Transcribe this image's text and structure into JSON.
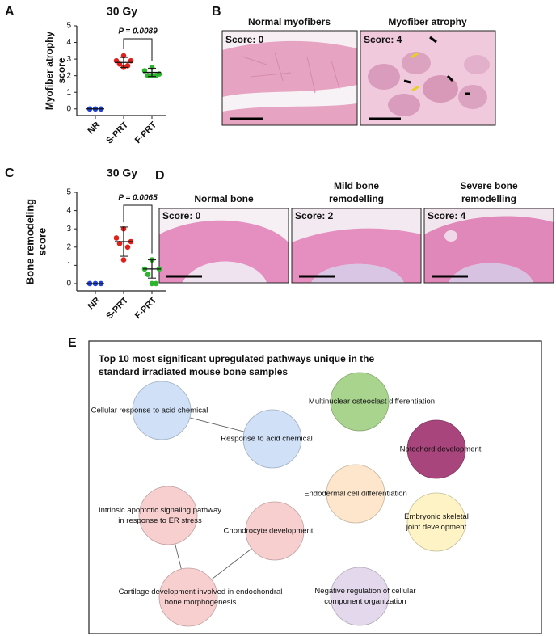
{
  "chart_data": [
    {
      "type": "strip",
      "panel": "A",
      "title": "30 Gy",
      "ylabel_lines": [
        "Myofiber atrophy",
        "score"
      ],
      "categories": [
        "NR",
        "S-PRT",
        "F-PRT"
      ],
      "values": [
        [
          0,
          0,
          0
        ],
        [
          3.2,
          2.9,
          2.9,
          2.7,
          2.6,
          2.5
        ],
        [
          2.5,
          2.3,
          2.1,
          2.0,
          2.0,
          2.0
        ]
      ],
      "means": [
        0,
        2.8,
        2.2
      ],
      "errors": [
        0,
        0.3,
        0.25
      ],
      "colors": [
        "#1f3fd6",
        "#e0201b",
        "#2db52d"
      ],
      "annotation": "P = 0.0089",
      "ylim": [
        -0.4,
        5
      ],
      "yticks": [
        0,
        1,
        2,
        3,
        4,
        5
      ]
    },
    {
      "type": "strip",
      "panel": "C",
      "title": "30 Gy",
      "ylabel_lines": [
        "Bone remodeling",
        "score"
      ],
      "categories": [
        "NR",
        "S-PRT",
        "F-PRT"
      ],
      "values": [
        [
          0,
          0,
          0
        ],
        [
          3.0,
          2.5,
          2.3,
          2.2,
          2.0,
          1.3
        ],
        [
          1.3,
          0.8,
          0.8,
          0.5,
          0.0,
          0.0
        ]
      ],
      "means": [
        0,
        2.3,
        0.8
      ],
      "errors": [
        0,
        0.8,
        0.5
      ],
      "colors": [
        "#1f3fd6",
        "#e0201b",
        "#2db52d"
      ],
      "annotation": "P = 0.0065",
      "ylim": [
        -0.4,
        5
      ],
      "yticks": [
        0,
        1,
        2,
        3,
        4,
        5
      ]
    }
  ],
  "panel_b": {
    "letter": "B",
    "images": [
      {
        "title": "Normal myofibers",
        "score": "Score: 0"
      },
      {
        "title": "Myofiber atrophy",
        "score": "Score: 4"
      }
    ]
  },
  "panel_d": {
    "letter": "D",
    "images": [
      {
        "title_lines": [
          "Normal bone"
        ],
        "score": "Score: 0"
      },
      {
        "title_lines": [
          "Mild bone",
          "remodelling"
        ],
        "score": "Score: 2"
      },
      {
        "title_lines": [
          "Severe bone",
          "remodelling"
        ],
        "score": "Score: 4"
      }
    ]
  },
  "panel_e": {
    "letter": "E",
    "title_lines": [
      "Top 10 most significant upregulated pathways unique in the",
      "standard irradiated mouse bone samples"
    ],
    "nodes": [
      {
        "lines": [
          "Cellular response to acid chemical"
        ],
        "color": "#cfe0f7"
      },
      {
        "lines": [
          "Response to acid chemical"
        ],
        "color": "#cfe0f7"
      },
      {
        "lines": [
          "Multinuclear osteoclast differentiation"
        ],
        "color": "#a9d48e"
      },
      {
        "lines": [
          "Notochord development"
        ],
        "color": "#a8457c"
      },
      {
        "lines": [
          "Endodermal cell differentiation"
        ],
        "color": "#fde6cc"
      },
      {
        "lines": [
          "Intrinsic apoptotic signaling pathway",
          "in response to ER stress"
        ],
        "color": "#f7cfcf"
      },
      {
        "lines": [
          "Chondrocyte development"
        ],
        "color": "#f7cfcf"
      },
      {
        "lines": [
          "Embryonic skeletal",
          "joint development"
        ],
        "color": "#fdf3c4"
      },
      {
        "lines": [
          "Cartilage development involved in endochondral",
          "bone morphogenesis"
        ],
        "color": "#f7cfcf"
      },
      {
        "lines": [
          "Negative regulation of cellular",
          "component organization"
        ],
        "color": "#e3d8ec"
      }
    ]
  }
}
